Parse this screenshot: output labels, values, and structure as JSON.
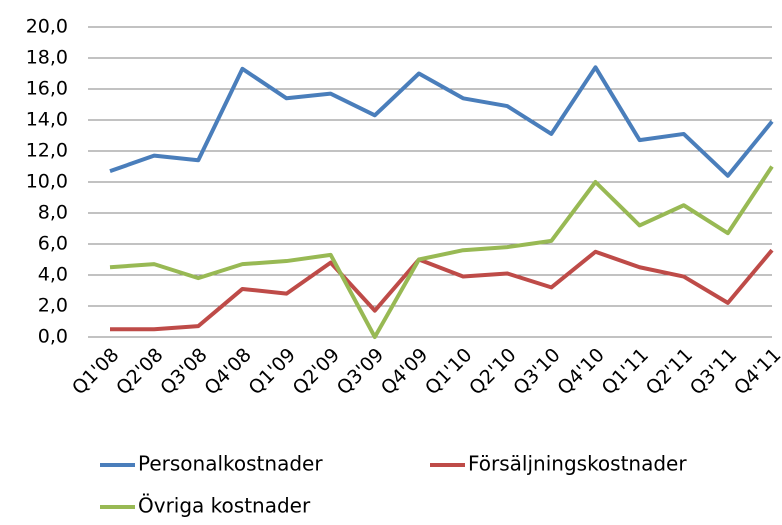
{
  "chart_data": {
    "type": "line",
    "categories": [
      "Q1'08",
      "Q2'08",
      "Q3'08",
      "Q4'08",
      "Q1'09",
      "Q2'09",
      "Q3'09",
      "Q4'09",
      "Q1'10",
      "Q2'10",
      "Q3'10",
      "Q4'10",
      "Q1'11",
      "Q2'11",
      "Q3'11",
      "Q4'11"
    ],
    "series": [
      {
        "name": "Personalkostnader",
        "color": "#4a7ebb",
        "values": [
          10.7,
          11.7,
          11.4,
          17.3,
          15.4,
          15.7,
          14.3,
          17.0,
          15.4,
          14.9,
          13.1,
          17.4,
          12.7,
          13.1,
          10.4,
          13.9
        ]
      },
      {
        "name": "Försäljningskostnader",
        "color": "#be4b48",
        "values": [
          0.5,
          0.5,
          0.7,
          3.1,
          2.8,
          4.8,
          1.7,
          5.0,
          3.9,
          4.1,
          3.2,
          5.5,
          4.5,
          3.9,
          2.2,
          5.6
        ]
      },
      {
        "name": "Övriga kostnader",
        "color": "#98b954",
        "values": [
          4.5,
          4.7,
          3.8,
          4.7,
          4.9,
          5.3,
          0.0,
          5.0,
          5.6,
          5.8,
          6.2,
          10.0,
          7.2,
          8.5,
          6.7,
          11.0
        ]
      }
    ],
    "ylim": [
      0,
      20
    ],
    "yticks": [
      {
        "value": 0,
        "label": "0,0"
      },
      {
        "value": 2,
        "label": "2,0"
      },
      {
        "value": 4,
        "label": "4,0"
      },
      {
        "value": 6,
        "label": "6,0"
      },
      {
        "value": 8,
        "label": "8,0"
      },
      {
        "value": 10,
        "label": "10,0"
      },
      {
        "value": 12,
        "label": "12,0"
      },
      {
        "value": 14,
        "label": "14,0"
      },
      {
        "value": 16,
        "label": "16,0"
      },
      {
        "value": 18,
        "label": "18,0"
      },
      {
        "value": 20,
        "label": "20,0"
      }
    ],
    "grid": true,
    "legend": "bottom"
  }
}
